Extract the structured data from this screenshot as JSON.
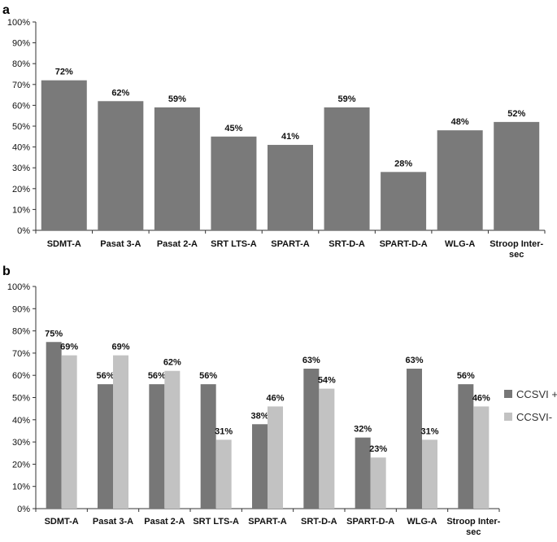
{
  "chart_data": [
    {
      "panel": "a",
      "type": "bar",
      "categories": [
        [
          "SDMT-A"
        ],
        [
          "Pasat 3-A"
        ],
        [
          "Pasat 2-A"
        ],
        [
          "SRT LTS-A"
        ],
        [
          "SPART-A"
        ],
        [
          "SRT-D-A"
        ],
        [
          "SPART-D-A"
        ],
        [
          "WLG-A"
        ],
        [
          "Stroop Inter-",
          "sec"
        ]
      ],
      "series": [
        {
          "values": [
            72,
            62,
            59,
            45,
            41,
            59,
            28,
            48,
            52
          ],
          "labels": [
            "72%",
            "62%",
            "59%",
            "45%",
            "41%",
            "59%",
            "28%",
            "48%",
            "52%"
          ],
          "color": "#7a7a7a"
        }
      ],
      "ylim": [
        0,
        100
      ],
      "yticks": [
        "0%",
        "10%",
        "20%",
        "30%",
        "40%",
        "50%",
        "60%",
        "70%",
        "80%",
        "90%",
        "100%"
      ],
      "grid": false,
      "legend": null
    },
    {
      "panel": "b",
      "type": "bar",
      "categories": [
        [
          "SDMT-A"
        ],
        [
          "Pasat 3-A"
        ],
        [
          "Pasat 2-A"
        ],
        [
          "SRT LTS-A"
        ],
        [
          "SPART-A"
        ],
        [
          "SRT-D-A"
        ],
        [
          "SPART-D-A"
        ],
        [
          "WLG-A"
        ],
        [
          "Stroop Inter-",
          "sec"
        ]
      ],
      "series": [
        {
          "name": "CCSVI +",
          "values": [
            75,
            56,
            56,
            56,
            38,
            63,
            32,
            63,
            56
          ],
          "labels": [
            "75%",
            "56%",
            "56%",
            "56%",
            "38%",
            "63%",
            "32%",
            "63%",
            "56%"
          ],
          "color": "#777777"
        },
        {
          "name": "CCSVI-",
          "values": [
            69,
            69,
            62,
            31,
            46,
            54,
            23,
            31,
            46
          ],
          "labels": [
            "69%",
            "69%",
            "62%",
            "31%",
            "46%",
            "54%",
            "23%",
            "31%",
            "46%"
          ],
          "color": "#c2c2c2"
        }
      ],
      "ylim": [
        0,
        100
      ],
      "yticks": [
        "0%",
        "10%",
        "20%",
        "30%",
        "40%",
        "50%",
        "60%",
        "70%",
        "80%",
        "90%",
        "100%"
      ],
      "grid": false,
      "legend": "right"
    }
  ]
}
